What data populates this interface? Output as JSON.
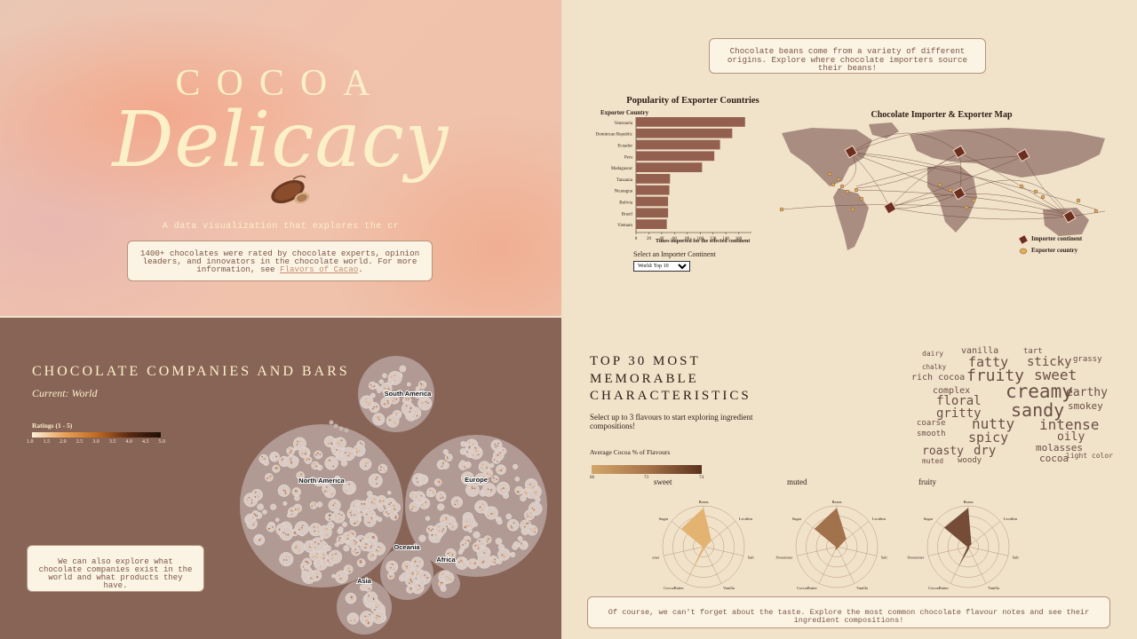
{
  "hero": {
    "title_top": "COCOA",
    "title_script": "Delicacy",
    "tagline": "A data visualization that explores the cr",
    "intro_text": "1400+ chocolates were rated by chocolate experts, opinion leaders, and innovators in the chocolate world. For more information, see",
    "intro_link": "Flavors of Cacao",
    "intro_end": "."
  },
  "origins": {
    "note": "Chocolate beans come from a variety of different origins. Explore where chocolate importers source their beans!",
    "bar_title": "Popularity of Exporter Countries",
    "bar_ylabel": "Exporter Country",
    "bar_xlabel": "Times imported for the selected continent",
    "select_label": "Select an Importer Continent",
    "select_value": "World: Top 10",
    "map_title": "Chocolate Importer & Exporter Map",
    "legend_importer": "Importer continent",
    "legend_exporter": "Exporter country"
  },
  "companies": {
    "title": "CHOCOLATE COMPANIES AND BARS",
    "subtitle": "Current: World",
    "ratings_label": "Ratings (1 - 5)",
    "rating_ticks": [
      "1.0",
      "1.5",
      "2.0",
      "2.5",
      "3.0",
      "3.5",
      "4.0",
      "4.5",
      "5.0"
    ],
    "note": "We can also explore what chocolate companies exist in the world and what products they have.",
    "continents": [
      "South America",
      "North America",
      "Europe",
      "Oceania",
      "Africa",
      "Asia"
    ]
  },
  "flavours": {
    "title_lines": [
      "TOP 30 MOST",
      "MEMORABLE",
      "CHARACTERISTICS"
    ],
    "instructions": "Select up to 3 flavours to start exploring ingredient compositions!",
    "cocoa_label": "Average Cocoa % of Flavours",
    "cocoa_ticks": [
      "66",
      "73",
      "74"
    ],
    "radar_axes": [
      "Beans",
      "Lecithin",
      "Salt",
      "Vanilla",
      "CocoaButter",
      "Sweetener",
      "Sugar"
    ],
    "note": "Of course, we can't forget about the taste. Explore the most common chocolate flavour notes and see their ingredient compositions!",
    "words": [
      "dairy",
      "vanilla",
      "tart",
      "chalky",
      "fatty",
      "sticky",
      "grassy",
      "rich cocoa",
      "fruity",
      "sweet",
      "complex",
      "creamy",
      "earthy",
      "floral",
      "sandy",
      "smokey",
      "gritty",
      "coarse",
      "nutty",
      "intense",
      "smooth",
      "spicy",
      "oily",
      "molasses",
      "roasty",
      "dry",
      "muted",
      "woody",
      "cocoa",
      "light color"
    ]
  },
  "chart_data": [
    {
      "type": "bar",
      "title": "Popularity of Exporter Countries",
      "ylabel": "Exporter Country",
      "xlabel": "Times imported for the selected continent",
      "categories": [
        "Venezuela",
        "Dominican Republic",
        "Ecuador",
        "Peru",
        "Madagascar",
        "Tanzania",
        "Nicaragua",
        "Bolivia",
        "Brazil",
        "Vietnam"
      ],
      "values": [
        170,
        150,
        131,
        122,
        103,
        53,
        52,
        50,
        50,
        48
      ],
      "xticks": [
        "0",
        "20",
        "40",
        "60",
        "80",
        "100",
        "120",
        "140",
        "160"
      ],
      "xlim": [
        0,
        180
      ]
    },
    {
      "type": "radar",
      "title": "sweet",
      "axes": [
        "Beans",
        "Lecithin",
        "Salt",
        "Vanilla",
        "CocoaButter",
        "Sweetener",
        "Sugar"
      ],
      "values": [
        0.95,
        0.25,
        0.05,
        0.05,
        0.75,
        0.02,
        0.7
      ],
      "color": "#e2b06d"
    },
    {
      "type": "radar",
      "title": "muted",
      "axes": [
        "Beans",
        "Lecithin",
        "Salt",
        "Vanilla",
        "CocoaButter",
        "Sweetener",
        "Sugar"
      ],
      "values": [
        0.95,
        0.3,
        0.05,
        0.05,
        0.1,
        0.02,
        0.7
      ],
      "color": "#9c6b45"
    },
    {
      "type": "radar",
      "title": "fruity",
      "axes": [
        "Beans",
        "Lecithin",
        "Salt",
        "Vanilla",
        "CocoaButter",
        "Sweetener",
        "Sugar"
      ],
      "values": [
        0.95,
        0.1,
        0.02,
        0.05,
        0.55,
        0.02,
        0.75
      ],
      "color": "#6e432f"
    }
  ]
}
